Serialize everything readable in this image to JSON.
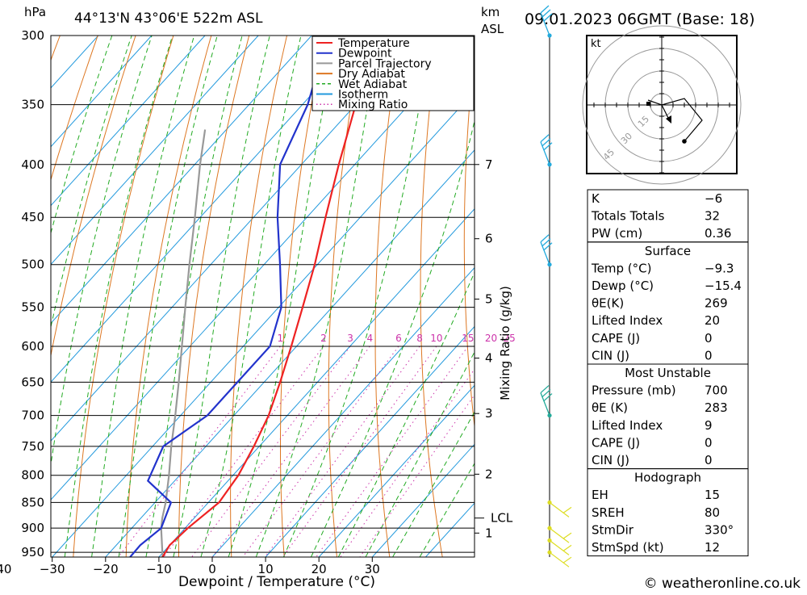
{
  "header": {
    "pressure_unit": "hPa",
    "location": "44°13'N  43°06'E  522m  ASL",
    "height_unit_1": "km",
    "height_unit_2": "ASL",
    "datetime": "09.01.2023  06GMT  (Base: 18)"
  },
  "footer": {
    "copyright": "© weatheronline.co.uk"
  },
  "hodograph": {
    "unit": "kt",
    "ring_labels": [
      "15",
      "30",
      "45"
    ]
  },
  "chart_data": {
    "type": "skew-t",
    "xlabel": "Dewpoint / Temperature (°C)",
    "ylabel_left": "hPa",
    "ylabel_right": "Mixing Ratio (g/kg)",
    "x_ticks": [
      -40,
      -30,
      -20,
      -10,
      0,
      10,
      20,
      30
    ],
    "pressure_levels": [
      300,
      350,
      400,
      450,
      500,
      550,
      600,
      650,
      700,
      750,
      800,
      850,
      900,
      950
    ],
    "height_km_ticks": [
      {
        "label": "7",
        "p": 400
      },
      {
        "label": "6",
        "p": 472
      },
      {
        "label": "5",
        "p": 540
      },
      {
        "label": "4",
        "p": 616
      },
      {
        "label": "3",
        "p": 697
      },
      {
        "label": "2",
        "p": 798
      },
      {
        "label": "1",
        "p": 910
      }
    ],
    "lcl_label": "LCL",
    "lcl_p": 880,
    "mixing_ratio_labels": [
      "1",
      "2",
      "3",
      "4",
      "6",
      "8",
      "10",
      "15",
      "20",
      "25"
    ],
    "mixing_ratio_values": [
      1,
      2,
      3,
      4,
      6,
      8,
      10,
      15,
      20,
      25
    ],
    "legend": [
      {
        "name": "Temperature",
        "color": "#ee2222",
        "style": "solid"
      },
      {
        "name": "Dewpoint",
        "color": "#2233cc",
        "style": "solid"
      },
      {
        "name": "Parcel Trajectory",
        "color": "#999999",
        "style": "solid"
      },
      {
        "name": "Dry Adiabat",
        "color": "#dd7722",
        "style": "solid"
      },
      {
        "name": "Wet Adiabat",
        "color": "#22aa22",
        "style": "dashed"
      },
      {
        "name": "Isotherm",
        "color": "#2299dd",
        "style": "solid"
      },
      {
        "name": "Mixing Ratio",
        "color": "#cc33aa",
        "style": "dotted"
      }
    ],
    "temperature": [
      {
        "p": 960,
        "t": -9.3
      },
      {
        "p": 935,
        "t": -10
      },
      {
        "p": 900,
        "t": -9.5
      },
      {
        "p": 850,
        "t": -8
      },
      {
        "p": 800,
        "t": -9
      },
      {
        "p": 750,
        "t": -11
      },
      {
        "p": 700,
        "t": -13.5
      },
      {
        "p": 650,
        "t": -17
      },
      {
        "p": 600,
        "t": -21
      },
      {
        "p": 550,
        "t": -25.5
      },
      {
        "p": 500,
        "t": -30.5
      },
      {
        "p": 450,
        "t": -36.5
      },
      {
        "p": 400,
        "t": -43
      },
      {
        "p": 350,
        "t": -50
      },
      {
        "p": 320,
        "t": -54
      },
      {
        "p": 300,
        "t": -56
      }
    ],
    "dewpoint": [
      {
        "p": 960,
        "t": -15.4
      },
      {
        "p": 935,
        "t": -15.5
      },
      {
        "p": 900,
        "t": -14.5
      },
      {
        "p": 850,
        "t": -17
      },
      {
        "p": 810,
        "t": -25
      },
      {
        "p": 750,
        "t": -28
      },
      {
        "p": 700,
        "t": -25
      },
      {
        "p": 650,
        "t": -25
      },
      {
        "p": 600,
        "t": -25
      },
      {
        "p": 550,
        "t": -29.5
      },
      {
        "p": 500,
        "t": -37
      },
      {
        "p": 450,
        "t": -45.5
      },
      {
        "p": 400,
        "t": -54
      },
      {
        "p": 350,
        "t": -59
      },
      {
        "p": 300,
        "t": -67
      }
    ],
    "parcel": [
      {
        "p": 960,
        "t": -9.3
      },
      {
        "p": 900,
        "t": -14.5
      },
      {
        "p": 880,
        "t": -16
      },
      {
        "p": 850,
        "t": -18
      },
      {
        "p": 800,
        "t": -22
      },
      {
        "p": 750,
        "t": -26.5
      },
      {
        "p": 700,
        "t": -31
      },
      {
        "p": 650,
        "t": -36
      },
      {
        "p": 600,
        "t": -41.5
      },
      {
        "p": 550,
        "t": -47.5
      },
      {
        "p": 500,
        "t": -54
      },
      {
        "p": 450,
        "t": -61
      },
      {
        "p": 400,
        "t": -69
      },
      {
        "p": 370,
        "t": -74
      }
    ],
    "indices": [
      {
        "label": "K",
        "value": "-6"
      },
      {
        "label": "Totals Totals",
        "value": "32"
      },
      {
        "label": "PW (cm)",
        "value": "0.36"
      }
    ],
    "surface": {
      "title": "Surface",
      "rows": [
        {
          "label": "Temp (°C)",
          "value": "-9.3"
        },
        {
          "label": "Dewp (°C)",
          "value": "-15.4"
        },
        {
          "label": "θE(K)",
          "value": "269"
        },
        {
          "label": "Lifted Index",
          "value": "20"
        },
        {
          "label": "CAPE (J)",
          "value": "0"
        },
        {
          "label": "CIN (J)",
          "value": "0"
        }
      ]
    },
    "most_unstable": {
      "title": "Most Unstable",
      "rows": [
        {
          "label": "Pressure (mb)",
          "value": "700"
        },
        {
          "label": "θE (K)",
          "value": "283"
        },
        {
          "label": "Lifted Index",
          "value": "9"
        },
        {
          "label": "CAPE (J)",
          "value": "0"
        },
        {
          "label": "CIN (J)",
          "value": "0"
        }
      ]
    },
    "hodograph_table": {
      "title": "Hodograph",
      "rows": [
        {
          "label": "EH",
          "value": "15"
        },
        {
          "label": "SREH",
          "value": "80"
        },
        {
          "label": "StmDir",
          "value": "330°"
        },
        {
          "label": "StmSpd (kt)",
          "value": "12"
        }
      ]
    },
    "wind_barbs": [
      {
        "p": 300,
        "color": "#22aadd"
      },
      {
        "p": 400,
        "color": "#22aadd"
      },
      {
        "p": 500,
        "color": "#22aadd"
      },
      {
        "p": 700,
        "color": "#22aa99"
      },
      {
        "p": 850,
        "color": "#dddd22"
      },
      {
        "p": 900,
        "color": "#dddd22"
      },
      {
        "p": 925,
        "color": "#dddd22"
      },
      {
        "p": 950,
        "color": "#dddd22"
      }
    ]
  }
}
